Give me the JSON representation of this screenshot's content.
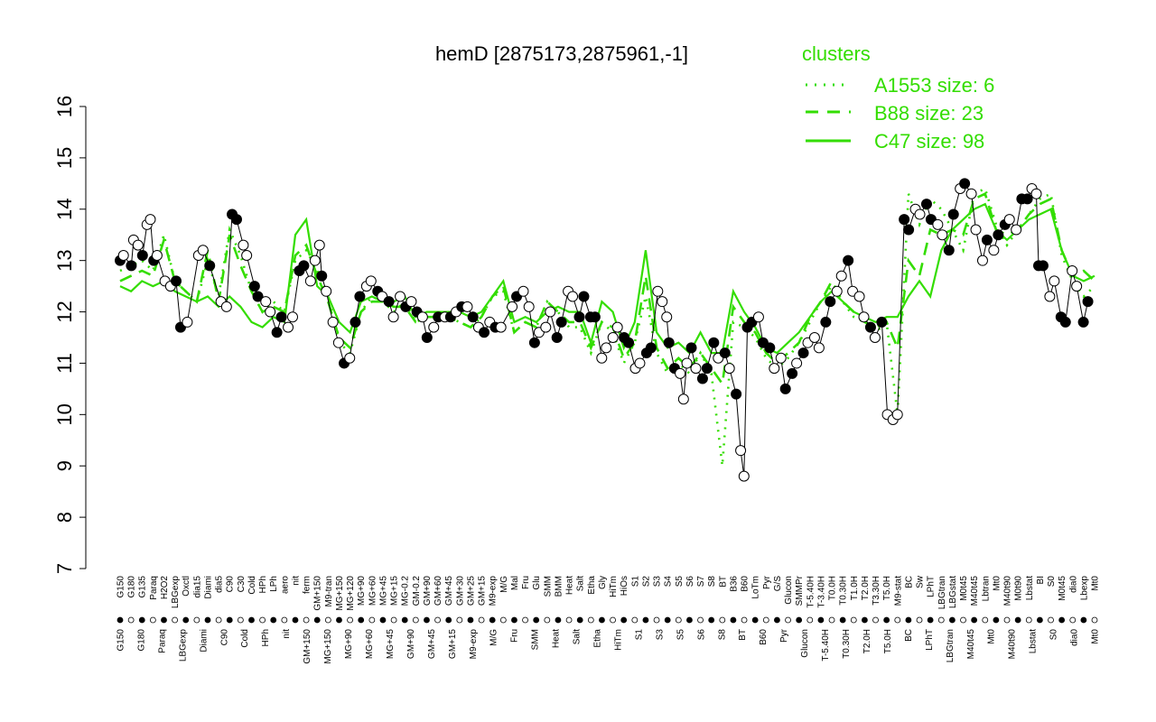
{
  "chart_data": {
    "type": "line",
    "title": "hemD [2875173,2875961,-1]",
    "xlabel": "",
    "ylabel": "",
    "ylim": [
      7,
      16
    ],
    "yticks": [
      7,
      8,
      9,
      10,
      11,
      12,
      13,
      14,
      15,
      16
    ],
    "legend": {
      "title": "clusters",
      "placement": "top-right",
      "entries": [
        {
          "label": "A1553 size: 6",
          "style": "dotted"
        },
        {
          "label": "B88 size: 23",
          "style": "dashed"
        },
        {
          "label": "C47 size: 98",
          "style": "solid"
        }
      ]
    },
    "colors": {
      "series": "#33dd00",
      "points": "#000000",
      "axis": "#000000"
    },
    "upper_labels": [
      "G150",
      "G180",
      "G135",
      "Paraq",
      "H2O2",
      "LBGexp",
      "Oxctl",
      "dia15",
      "Diami",
      "dia5",
      "C90",
      "C30",
      "Cold",
      "HPh",
      "LPh",
      "aero",
      "nit",
      "ferm",
      "GM+150",
      "M9-tran",
      "MG+150",
      "MG+120",
      "MG+90",
      "MG+60",
      "MG+45",
      "MG+15",
      "MG-0.2",
      "GM-0.2",
      "GM+90",
      "GM+60",
      "GM+45",
      "GM+30",
      "GM+25",
      "GM+15",
      "M9-exp",
      "M/G",
      "Mal",
      "Fru",
      "Glu",
      "SMM",
      "BMM",
      "Heat",
      "Salt",
      "Etha",
      "Gly",
      "HiTm",
      "HiOs",
      "S1",
      "S2",
      "S3",
      "S4",
      "S5",
      "S6",
      "S7",
      "S8",
      "BT",
      "B36",
      "B60",
      "LoTm",
      "Pyr",
      "G/S",
      "Glucon",
      "SMMPr",
      "T-5.40H",
      "T-3.40H",
      "T0.0H",
      "T0.30H",
      "T1.0H",
      "T2.0H",
      "T3.30H",
      "T5.0H",
      "M9-stat",
      "BC",
      "Sw",
      "LPhT",
      "LBGtran",
      "LBGstat",
      "M0t45",
      "M40t45",
      "Lbtran",
      "Mt0",
      "M40t90",
      "M0t90",
      "Lbstat",
      "BI",
      "S0",
      "M0t45",
      "dia0",
      "Lbexp",
      "Mt0"
    ],
    "lower_labels": [
      "G150",
      "G180",
      "Paraq",
      "LBGexp",
      "Diami",
      "C90",
      "Cold",
      "HPh",
      "nit",
      "GM+150",
      "MG+150",
      "MG+90",
      "MG+60",
      "MG+45",
      "GM+90",
      "GM+45",
      "GM+15",
      "M9-exp",
      "M/G",
      "Fru",
      "SMM",
      "Heat",
      "Salt",
      "Etha",
      "HiTm",
      "S1",
      "S3",
      "S5",
      "S6",
      "S8",
      "BT",
      "B60",
      "Pyr",
      "Glucon",
      "T-5.40H",
      "T0.30H",
      "T2.0H",
      "T5.0H",
      "BC",
      "LPhT",
      "LBGtran",
      "M40t45",
      "Mt0",
      "M40t90",
      "Lbstat",
      "S0",
      "dia0",
      "Mt0"
    ],
    "series": [
      {
        "name": "A1553 size: 6",
        "values": [
          12.8,
          12.9,
          13.0,
          12.8,
          13.5,
          12.6,
          12.4,
          12.2,
          13.0,
          12.3,
          13.6,
          13.1,
          12.4,
          12.0,
          12.2,
          12.0,
          13.0,
          13.2,
          12.8,
          12.3,
          11.4,
          11.2,
          12.0,
          12.3,
          12.2,
          12.0,
          12.2,
          11.8,
          11.9,
          11.9,
          11.9,
          11.8,
          11.7,
          11.9,
          12.3,
          12.4,
          11.6,
          11.8,
          11.7,
          12.2,
          12.0,
          11.7,
          11.7,
          11.2,
          11.8,
          11.6,
          11.0,
          11.4,
          12.3,
          11.2,
          10.8,
          11.0,
          10.8,
          11.2,
          10.8,
          9.0,
          11.8,
          11.7,
          11.5,
          11.1,
          10.9,
          11.1,
          11.4,
          11.8,
          12.2,
          12.5,
          12.2,
          11.9,
          11.8,
          11.6,
          11.8,
          10.0,
          14.3,
          13.7,
          14.2,
          14.0,
          13.6,
          13.2,
          14.3,
          14.4,
          13.7,
          13.3,
          13.6,
          13.9,
          14.2,
          14.3,
          13.1,
          12.6,
          12.3,
          12.5
        ]
      },
      {
        "name": "B88 size: 23",
        "values": [
          12.6,
          12.7,
          12.8,
          12.7,
          13.4,
          12.6,
          12.4,
          12.2,
          13.2,
          12.2,
          13.5,
          12.9,
          12.4,
          12.0,
          12.1,
          12.0,
          13.1,
          13.3,
          12.7,
          12.2,
          11.5,
          11.3,
          12.0,
          12.2,
          12.2,
          12.1,
          12.1,
          11.8,
          11.9,
          11.9,
          11.9,
          11.8,
          11.7,
          11.9,
          12.3,
          12.5,
          11.6,
          11.8,
          11.7,
          12.2,
          12.0,
          11.8,
          11.8,
          11.3,
          11.8,
          11.7,
          11.1,
          11.4,
          12.7,
          11.3,
          10.9,
          11.1,
          10.9,
          11.2,
          10.9,
          10.6,
          12.1,
          11.8,
          11.6,
          11.2,
          11.0,
          11.2,
          11.4,
          11.9,
          12.2,
          12.6,
          12.2,
          12.0,
          11.8,
          11.7,
          11.8,
          11.3,
          13.0,
          12.7,
          13.6,
          13.5,
          13.6,
          13.5,
          14.2,
          14.3,
          13.6,
          13.5,
          13.6,
          13.9,
          14.1,
          14.2,
          13.2,
          12.7,
          12.8,
          12.6
        ]
      },
      {
        "name": "C47 size: 98",
        "values": [
          12.5,
          12.4,
          12.6,
          12.5,
          12.6,
          12.4,
          12.3,
          12.2,
          12.3,
          12.1,
          12.3,
          12.1,
          11.8,
          11.7,
          11.9,
          11.8,
          13.5,
          13.8,
          12.5,
          12.3,
          11.8,
          11.6,
          12.2,
          12.3,
          12.2,
          12.2,
          12.3,
          11.9,
          12.0,
          12.0,
          12.0,
          12.0,
          11.9,
          12.0,
          12.3,
          12.6,
          11.8,
          11.9,
          11.8,
          12.0,
          12.1,
          12.0,
          12.0,
          11.4,
          12.2,
          12.0,
          11.3,
          11.8,
          13.2,
          11.6,
          11.3,
          11.4,
          11.2,
          11.6,
          11.2,
          11.2,
          12.4,
          12.0,
          11.7,
          11.3,
          11.2,
          11.4,
          11.6,
          11.9,
          12.2,
          12.4,
          12.2,
          12.0,
          11.9,
          11.8,
          11.9,
          11.9,
          12.3,
          12.6,
          12.3,
          13.2,
          13.6,
          13.8,
          14.0,
          14.1,
          13.6,
          13.4,
          13.6,
          13.8,
          13.9,
          14.0,
          13.2,
          12.7,
          12.6,
          12.7
        ]
      }
    ],
    "points": [
      {
        "i": 0,
        "y": 13.0,
        "f": 1
      },
      {
        "i": 0.3,
        "y": 13.1,
        "f": 0
      },
      {
        "i": 1,
        "y": 12.9,
        "f": 1
      },
      {
        "i": 1.2,
        "y": 13.4,
        "f": 0
      },
      {
        "i": 1.6,
        "y": 13.3,
        "f": 0
      },
      {
        "i": 2,
        "y": 13.1,
        "f": 1
      },
      {
        "i": 2.4,
        "y": 13.7,
        "f": 0
      },
      {
        "i": 2.7,
        "y": 13.8,
        "f": 0
      },
      {
        "i": 3,
        "y": 13.0,
        "f": 1
      },
      {
        "i": 3.3,
        "y": 13.1,
        "f": 0
      },
      {
        "i": 4,
        "y": 12.6,
        "f": 0
      },
      {
        "i": 4.5,
        "y": 12.5,
        "f": 0
      },
      {
        "i": 5,
        "y": 12.6,
        "f": 1
      },
      {
        "i": 5.4,
        "y": 11.7,
        "f": 1
      },
      {
        "i": 6,
        "y": 11.8,
        "f": 0
      },
      {
        "i": 7,
        "y": 13.1,
        "f": 0
      },
      {
        "i": 7.4,
        "y": 13.2,
        "f": 0
      },
      {
        "i": 8,
        "y": 12.9,
        "f": 1
      },
      {
        "i": 9,
        "y": 12.2,
        "f": 0
      },
      {
        "i": 9.5,
        "y": 12.1,
        "f": 0
      },
      {
        "i": 10,
        "y": 13.9,
        "f": 1
      },
      {
        "i": 10.4,
        "y": 13.8,
        "f": 1
      },
      {
        "i": 11,
        "y": 13.3,
        "f": 0
      },
      {
        "i": 11.3,
        "y": 13.1,
        "f": 0
      },
      {
        "i": 12,
        "y": 12.5,
        "f": 1
      },
      {
        "i": 12.3,
        "y": 12.3,
        "f": 1
      },
      {
        "i": 13,
        "y": 12.2,
        "f": 0
      },
      {
        "i": 13.4,
        "y": 12.0,
        "f": 0
      },
      {
        "i": 14,
        "y": 11.6,
        "f": 1
      },
      {
        "i": 14.4,
        "y": 11.9,
        "f": 1
      },
      {
        "i": 15,
        "y": 11.7,
        "f": 0
      },
      {
        "i": 15.4,
        "y": 11.9,
        "f": 0
      },
      {
        "i": 16,
        "y": 12.8,
        "f": 1
      },
      {
        "i": 16.4,
        "y": 12.9,
        "f": 1
      },
      {
        "i": 17,
        "y": 12.6,
        "f": 0
      },
      {
        "i": 17.4,
        "y": 13.0,
        "f": 0
      },
      {
        "i": 17.8,
        "y": 13.3,
        "f": 0
      },
      {
        "i": 18,
        "y": 12.7,
        "f": 1
      },
      {
        "i": 18.4,
        "y": 12.4,
        "f": 0
      },
      {
        "i": 19,
        "y": 11.8,
        "f": 0
      },
      {
        "i": 19.5,
        "y": 11.4,
        "f": 0
      },
      {
        "i": 20,
        "y": 11.0,
        "f": 1
      },
      {
        "i": 20.5,
        "y": 11.1,
        "f": 0
      },
      {
        "i": 21,
        "y": 11.8,
        "f": 1
      },
      {
        "i": 21.4,
        "y": 12.3,
        "f": 1
      },
      {
        "i": 22,
        "y": 12.5,
        "f": 0
      },
      {
        "i": 22.4,
        "y": 12.6,
        "f": 0
      },
      {
        "i": 23,
        "y": 12.4,
        "f": 1
      },
      {
        "i": 23.4,
        "y": 12.3,
        "f": 0
      },
      {
        "i": 24,
        "y": 12.2,
        "f": 1
      },
      {
        "i": 24.4,
        "y": 11.9,
        "f": 0
      },
      {
        "i": 25,
        "y": 12.3,
        "f": 0
      },
      {
        "i": 25.5,
        "y": 12.1,
        "f": 1
      },
      {
        "i": 26,
        "y": 12.2,
        "f": 0
      },
      {
        "i": 26.5,
        "y": 12.0,
        "f": 1
      },
      {
        "i": 27,
        "y": 11.9,
        "f": 0
      },
      {
        "i": 27.4,
        "y": 11.5,
        "f": 1
      },
      {
        "i": 28,
        "y": 11.7,
        "f": 0
      },
      {
        "i": 28.4,
        "y": 11.9,
        "f": 1
      },
      {
        "i": 29,
        "y": 11.9,
        "f": 0
      },
      {
        "i": 29.5,
        "y": 11.9,
        "f": 1
      },
      {
        "i": 30,
        "y": 12.0,
        "f": 0
      },
      {
        "i": 30.5,
        "y": 12.1,
        "f": 1
      },
      {
        "i": 31,
        "y": 12.1,
        "f": 0
      },
      {
        "i": 31.5,
        "y": 11.9,
        "f": 1
      },
      {
        "i": 32,
        "y": 11.7,
        "f": 0
      },
      {
        "i": 32.5,
        "y": 11.6,
        "f": 1
      },
      {
        "i": 33,
        "y": 11.8,
        "f": 0
      },
      {
        "i": 33.5,
        "y": 11.7,
        "f": 1
      },
      {
        "i": 34,
        "y": 11.7,
        "f": 0
      },
      {
        "i": 35,
        "y": 12.1,
        "f": 0
      },
      {
        "i": 35.4,
        "y": 12.3,
        "f": 1
      },
      {
        "i": 36,
        "y": 12.4,
        "f": 0
      },
      {
        "i": 36.5,
        "y": 12.1,
        "f": 0
      },
      {
        "i": 37,
        "y": 11.4,
        "f": 1
      },
      {
        "i": 37.4,
        "y": 11.6,
        "f": 0
      },
      {
        "i": 38,
        "y": 11.7,
        "f": 0
      },
      {
        "i": 38.4,
        "y": 12.0,
        "f": 0
      },
      {
        "i": 39,
        "y": 11.5,
        "f": 1
      },
      {
        "i": 39.4,
        "y": 11.8,
        "f": 1
      },
      {
        "i": 40,
        "y": 12.4,
        "f": 0
      },
      {
        "i": 40.4,
        "y": 12.3,
        "f": 0
      },
      {
        "i": 41,
        "y": 11.9,
        "f": 1
      },
      {
        "i": 41.4,
        "y": 12.3,
        "f": 1
      },
      {
        "i": 42,
        "y": 11.9,
        "f": 1
      },
      {
        "i": 42.4,
        "y": 11.9,
        "f": 1
      },
      {
        "i": 43,
        "y": 11.1,
        "f": 0
      },
      {
        "i": 43.4,
        "y": 11.3,
        "f": 0
      },
      {
        "i": 44,
        "y": 11.5,
        "f": 0
      },
      {
        "i": 44.4,
        "y": 11.7,
        "f": 0
      },
      {
        "i": 45,
        "y": 11.5,
        "f": 1
      },
      {
        "i": 45.4,
        "y": 11.4,
        "f": 1
      },
      {
        "i": 46,
        "y": 10.9,
        "f": 0
      },
      {
        "i": 46.4,
        "y": 11.0,
        "f": 0
      },
      {
        "i": 47,
        "y": 11.2,
        "f": 1
      },
      {
        "i": 47.4,
        "y": 11.3,
        "f": 1
      },
      {
        "i": 48,
        "y": 12.4,
        "f": 0
      },
      {
        "i": 48.4,
        "y": 12.2,
        "f": 0
      },
      {
        "i": 48.8,
        "y": 11.9,
        "f": 0
      },
      {
        "i": 49,
        "y": 11.4,
        "f": 1
      },
      {
        "i": 49.5,
        "y": 10.9,
        "f": 1
      },
      {
        "i": 50,
        "y": 10.8,
        "f": 0
      },
      {
        "i": 50.3,
        "y": 10.3,
        "f": 0
      },
      {
        "i": 50.6,
        "y": 11.0,
        "f": 0
      },
      {
        "i": 51,
        "y": 11.3,
        "f": 1
      },
      {
        "i": 51.4,
        "y": 10.9,
        "f": 0
      },
      {
        "i": 52,
        "y": 10.7,
        "f": 1
      },
      {
        "i": 52.4,
        "y": 10.9,
        "f": 1
      },
      {
        "i": 53,
        "y": 11.4,
        "f": 1
      },
      {
        "i": 53.4,
        "y": 11.1,
        "f": 0
      },
      {
        "i": 54,
        "y": 11.2,
        "f": 1
      },
      {
        "i": 54.4,
        "y": 10.9,
        "f": 0
      },
      {
        "i": 55,
        "y": 10.4,
        "f": 1
      },
      {
        "i": 55.4,
        "y": 9.3,
        "f": 0
      },
      {
        "i": 55.7,
        "y": 8.8,
        "f": 0
      },
      {
        "i": 56,
        "y": 11.7,
        "f": 1
      },
      {
        "i": 56.4,
        "y": 11.8,
        "f": 1
      },
      {
        "i": 57,
        "y": 11.9,
        "f": 0
      },
      {
        "i": 57.4,
        "y": 11.4,
        "f": 1
      },
      {
        "i": 58,
        "y": 11.3,
        "f": 1
      },
      {
        "i": 58.4,
        "y": 10.9,
        "f": 0
      },
      {
        "i": 59,
        "y": 11.1,
        "f": 0
      },
      {
        "i": 59.4,
        "y": 10.5,
        "f": 1
      },
      {
        "i": 60,
        "y": 10.8,
        "f": 1
      },
      {
        "i": 60.4,
        "y": 11.0,
        "f": 0
      },
      {
        "i": 61,
        "y": 11.2,
        "f": 1
      },
      {
        "i": 61.4,
        "y": 11.4,
        "f": 0
      },
      {
        "i": 62,
        "y": 11.5,
        "f": 0
      },
      {
        "i": 62.4,
        "y": 11.3,
        "f": 0
      },
      {
        "i": 63,
        "y": 11.8,
        "f": 1
      },
      {
        "i": 63.4,
        "y": 12.2,
        "f": 1
      },
      {
        "i": 64,
        "y": 12.4,
        "f": 0
      },
      {
        "i": 64.4,
        "y": 12.7,
        "f": 0
      },
      {
        "i": 65,
        "y": 13.0,
        "f": 1
      },
      {
        "i": 65.4,
        "y": 12.4,
        "f": 0
      },
      {
        "i": 66,
        "y": 12.3,
        "f": 0
      },
      {
        "i": 66.4,
        "y": 11.9,
        "f": 0
      },
      {
        "i": 67,
        "y": 11.7,
        "f": 1
      },
      {
        "i": 67.4,
        "y": 11.5,
        "f": 0
      },
      {
        "i": 68,
        "y": 11.8,
        "f": 1
      },
      {
        "i": 68.5,
        "y": 10.0,
        "f": 0
      },
      {
        "i": 69,
        "y": 9.9,
        "f": 0
      },
      {
        "i": 69.4,
        "y": 10.0,
        "f": 0
      },
      {
        "i": 70,
        "y": 13.8,
        "f": 1
      },
      {
        "i": 70.4,
        "y": 13.6,
        "f": 1
      },
      {
        "i": 71,
        "y": 14.0,
        "f": 0
      },
      {
        "i": 71.4,
        "y": 13.9,
        "f": 0
      },
      {
        "i": 72,
        "y": 14.1,
        "f": 1
      },
      {
        "i": 72.4,
        "y": 13.8,
        "f": 1
      },
      {
        "i": 73,
        "y": 13.7,
        "f": 0
      },
      {
        "i": 73.4,
        "y": 13.5,
        "f": 0
      },
      {
        "i": 74,
        "y": 13.2,
        "f": 1
      },
      {
        "i": 74.4,
        "y": 13.9,
        "f": 1
      },
      {
        "i": 75,
        "y": 14.4,
        "f": 0
      },
      {
        "i": 75.4,
        "y": 14.5,
        "f": 1
      },
      {
        "i": 76,
        "y": 14.3,
        "f": 0
      },
      {
        "i": 76.4,
        "y": 13.6,
        "f": 0
      },
      {
        "i": 77,
        "y": 13.0,
        "f": 0
      },
      {
        "i": 77.4,
        "y": 13.4,
        "f": 1
      },
      {
        "i": 78,
        "y": 13.2,
        "f": 0
      },
      {
        "i": 78.4,
        "y": 13.5,
        "f": 1
      },
      {
        "i": 79,
        "y": 13.7,
        "f": 1
      },
      {
        "i": 79.4,
        "y": 13.8,
        "f": 0
      },
      {
        "i": 80,
        "y": 13.6,
        "f": 0
      },
      {
        "i": 80.5,
        "y": 14.2,
        "f": 1
      },
      {
        "i": 81,
        "y": 14.2,
        "f": 1
      },
      {
        "i": 81.4,
        "y": 14.4,
        "f": 0
      },
      {
        "i": 81.8,
        "y": 14.3,
        "f": 0
      },
      {
        "i": 82,
        "y": 12.9,
        "f": 1
      },
      {
        "i": 82.4,
        "y": 12.9,
        "f": 1
      },
      {
        "i": 83,
        "y": 12.3,
        "f": 0
      },
      {
        "i": 83.4,
        "y": 12.6,
        "f": 0
      },
      {
        "i": 84,
        "y": 11.9,
        "f": 1
      },
      {
        "i": 84.4,
        "y": 11.8,
        "f": 1
      },
      {
        "i": 85,
        "y": 12.8,
        "f": 0
      },
      {
        "i": 85.4,
        "y": 12.5,
        "f": 0
      },
      {
        "i": 86,
        "y": 11.8,
        "f": 1
      },
      {
        "i": 86.4,
        "y": 12.2,
        "f": 1
      }
    ]
  }
}
